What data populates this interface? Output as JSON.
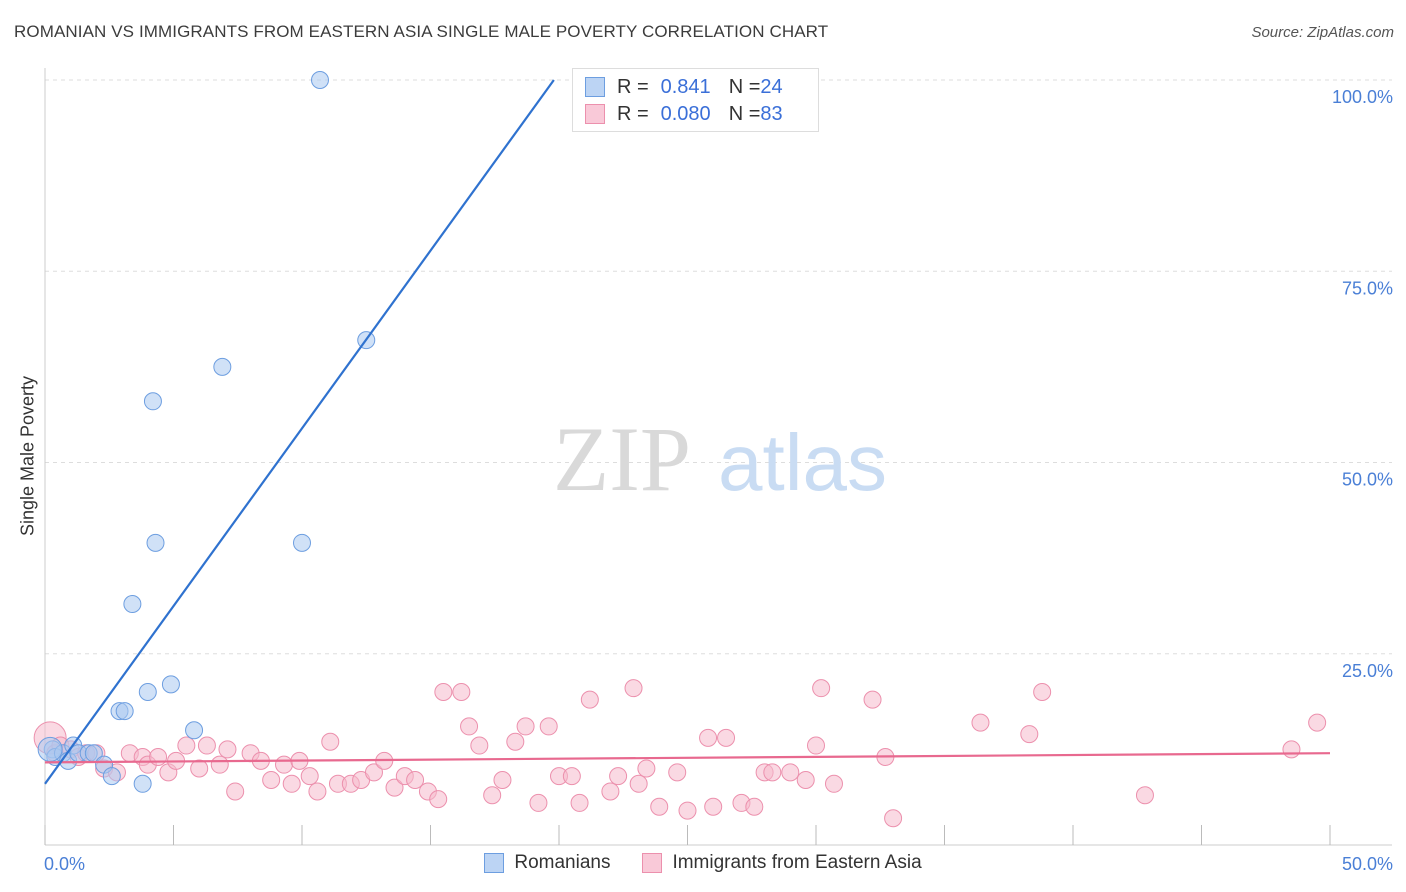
{
  "title": "ROMANIAN VS IMMIGRANTS FROM EASTERN ASIA SINGLE MALE POVERTY CORRELATION CHART",
  "source": "Source: ZipAtlas.com",
  "watermark": {
    "zip": "ZIP",
    "atlas": "atlas"
  },
  "colors": {
    "blue_fill": "#a9c8f0",
    "blue_stroke": "#6d9ee0",
    "blue_line": "#2f72cf",
    "pink_fill": "#f6b9cc",
    "pink_stroke": "#ec90ad",
    "pink_line": "#e8698f",
    "axis_text": "#4a7fd6",
    "grid": "#dddddd"
  },
  "legend": {
    "rows": [
      {
        "r_label": "R = ",
        "r_value": "0.841",
        "n_label": "N = ",
        "n_value": "24"
      },
      {
        "r_label": "R = ",
        "r_value": "0.080",
        "n_label": "N = ",
        "n_value": "83"
      }
    ]
  },
  "bottom_legend": {
    "series1": "Romanians",
    "series2": "Immigrants from Eastern Asia"
  },
  "chart_data": {
    "type": "scatter",
    "title": "ROMANIAN VS IMMIGRANTS FROM EASTERN ASIA SINGLE MALE POVERTY CORRELATION CHART",
    "xlabel": "",
    "ylabel": "Single Male Poverty",
    "xlim": [
      0,
      50
    ],
    "ylim": [
      0,
      100
    ],
    "x_tick_labels": [
      "0.0%",
      "50.0%"
    ],
    "y_ticks": [
      25,
      50,
      75,
      100
    ],
    "y_tick_labels": [
      "25.0%",
      "50.0%",
      "75.0%",
      "100.0%"
    ],
    "grid": true,
    "series": [
      {
        "name": "Romanians",
        "r": 0.841,
        "n": 24,
        "trend": {
          "x0": 0,
          "y0": 8,
          "x1": 19.8,
          "y1": 100
        },
        "points": [
          [
            0.3,
            12.5
          ],
          [
            0.4,
            11.5
          ],
          [
            0.7,
            12.0
          ],
          [
            0.9,
            11.0
          ],
          [
            1.1,
            13.0
          ],
          [
            1.3,
            12.0
          ],
          [
            1.7,
            12.0
          ],
          [
            1.9,
            12.0
          ],
          [
            2.3,
            10.5
          ],
          [
            2.6,
            9.0
          ],
          [
            2.9,
            17.5
          ],
          [
            3.1,
            17.5
          ],
          [
            3.4,
            31.5
          ],
          [
            3.8,
            8.0
          ],
          [
            4.0,
            20.0
          ],
          [
            4.2,
            58.0
          ],
          [
            4.3,
            39.5
          ],
          [
            4.9,
            21.0
          ],
          [
            5.8,
            15.0
          ],
          [
            6.9,
            62.5
          ],
          [
            10.0,
            39.5
          ],
          [
            10.7,
            100
          ],
          [
            12.5,
            66.0
          ],
          [
            0.2,
            12.5
          ]
        ]
      },
      {
        "name": "Immigrants from Eastern Asia",
        "r": 0.08,
        "n": 83,
        "trend": {
          "x0": 0,
          "y0": 10.8,
          "x1": 50,
          "y1": 12.0
        },
        "points": [
          [
            0.2,
            14.0
          ],
          [
            0.4,
            12.0
          ],
          [
            0.6,
            13.0
          ],
          [
            1.0,
            12.5
          ],
          [
            1.3,
            11.5
          ],
          [
            1.6,
            12.0
          ],
          [
            2.0,
            12.0
          ],
          [
            2.3,
            10.0
          ],
          [
            2.8,
            9.5
          ],
          [
            3.3,
            12.0
          ],
          [
            3.8,
            11.5
          ],
          [
            4.0,
            10.5
          ],
          [
            4.4,
            11.5
          ],
          [
            4.8,
            9.5
          ],
          [
            5.1,
            11.0
          ],
          [
            5.5,
            13.0
          ],
          [
            6.0,
            10.0
          ],
          [
            6.3,
            13.0
          ],
          [
            6.8,
            10.5
          ],
          [
            7.1,
            12.5
          ],
          [
            7.4,
            7.0
          ],
          [
            8.0,
            12.0
          ],
          [
            8.4,
            11.0
          ],
          [
            8.8,
            8.5
          ],
          [
            9.3,
            10.5
          ],
          [
            9.6,
            8.0
          ],
          [
            9.9,
            11.0
          ],
          [
            10.3,
            9.0
          ],
          [
            10.6,
            7.0
          ],
          [
            11.1,
            13.5
          ],
          [
            11.4,
            8.0
          ],
          [
            11.9,
            8.0
          ],
          [
            12.3,
            8.5
          ],
          [
            12.8,
            9.5
          ],
          [
            13.2,
            11.0
          ],
          [
            13.6,
            7.5
          ],
          [
            14.0,
            9.0
          ],
          [
            14.4,
            8.5
          ],
          [
            14.9,
            7.0
          ],
          [
            15.3,
            6.0
          ],
          [
            15.5,
            20.0
          ],
          [
            16.2,
            20.0
          ],
          [
            16.5,
            15.5
          ],
          [
            16.9,
            13.0
          ],
          [
            17.4,
            6.5
          ],
          [
            17.8,
            8.5
          ],
          [
            18.3,
            13.5
          ],
          [
            18.7,
            15.5
          ],
          [
            19.2,
            5.5
          ],
          [
            19.6,
            15.5
          ],
          [
            20.0,
            9.0
          ],
          [
            20.5,
            9.0
          ],
          [
            20.8,
            5.5
          ],
          [
            21.2,
            19.0
          ],
          [
            22.0,
            7.0
          ],
          [
            22.3,
            9.0
          ],
          [
            22.9,
            20.5
          ],
          [
            23.1,
            8.0
          ],
          [
            23.4,
            10.0
          ],
          [
            23.9,
            5.0
          ],
          [
            24.6,
            9.5
          ],
          [
            25.0,
            4.5
          ],
          [
            25.8,
            14.0
          ],
          [
            26.0,
            5.0
          ],
          [
            26.5,
            14.0
          ],
          [
            27.1,
            5.5
          ],
          [
            27.6,
            5.0
          ],
          [
            28.0,
            9.5
          ],
          [
            28.3,
            9.5
          ],
          [
            29.0,
            9.5
          ],
          [
            29.6,
            8.5
          ],
          [
            30.0,
            13.0
          ],
          [
            30.2,
            20.5
          ],
          [
            30.7,
            8.0
          ],
          [
            32.2,
            19.0
          ],
          [
            32.7,
            11.5
          ],
          [
            33.0,
            3.5
          ],
          [
            36.4,
            16.0
          ],
          [
            38.3,
            14.5
          ],
          [
            38.8,
            20.0
          ],
          [
            42.8,
            6.5
          ],
          [
            48.5,
            12.5
          ],
          [
            49.5,
            16.0
          ]
        ]
      }
    ]
  }
}
